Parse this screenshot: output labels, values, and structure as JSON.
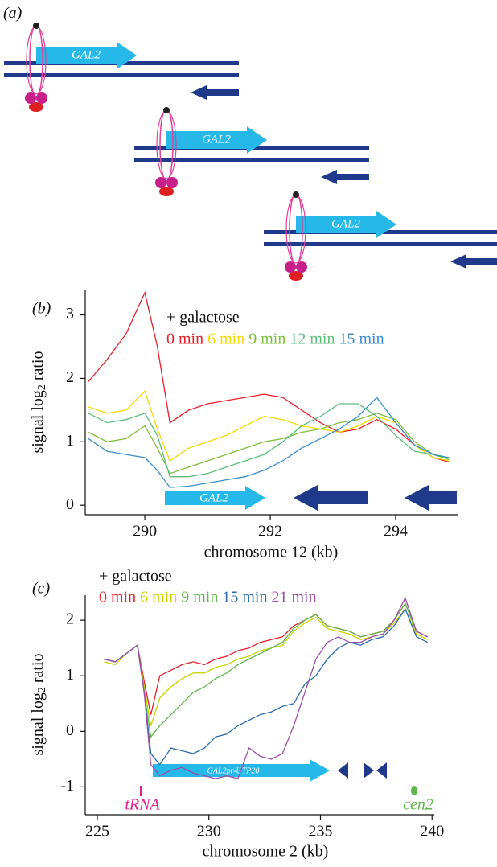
{
  "panel_a": {
    "label": "(a)",
    "genes": [
      "GAL2",
      "GAL2",
      "GAL2"
    ]
  },
  "chart_data": [
    {
      "type": "line",
      "panel": "(b)",
      "annotation": "+ galactose",
      "xlabel": "chromosome 12 (kb)",
      "ylabel": [
        "signal log",
        "2",
        "ratio"
      ],
      "features": [
        "GAL2"
      ],
      "x": [
        289.1,
        289.4,
        289.7,
        290.0,
        290.2,
        290.4,
        290.7,
        291.0,
        291.3,
        291.6,
        291.9,
        292.2,
        292.5,
        292.8,
        293.1,
        293.4,
        293.7,
        294.0,
        294.3,
        294.6,
        294.85
      ],
      "xlim": [
        289.05,
        295
      ],
      "xticks": [
        290,
        292,
        294
      ],
      "ylim": [
        -0.15,
        3.4
      ],
      "yticks": [
        0,
        1,
        2,
        3
      ],
      "series": [
        {
          "name": "0 min",
          "color": "#e8202a",
          "values": [
            1.95,
            2.3,
            2.7,
            3.35,
            2.5,
            1.3,
            1.5,
            1.6,
            1.65,
            1.7,
            1.75,
            1.7,
            1.5,
            1.3,
            1.15,
            1.2,
            1.35,
            1.2,
            0.95,
            0.75,
            0.68
          ]
        },
        {
          "name": "6 min",
          "color": "#f5d800",
          "values": [
            1.55,
            1.45,
            1.5,
            1.8,
            1.2,
            0.7,
            0.9,
            1.0,
            1.1,
            1.25,
            1.4,
            1.35,
            1.25,
            1.2,
            1.15,
            1.25,
            1.4,
            1.3,
            0.95,
            0.75,
            0.7
          ]
        },
        {
          "name": "9 min",
          "color": "#7dbf3a",
          "values": [
            1.15,
            1.0,
            1.05,
            1.25,
            0.9,
            0.5,
            0.6,
            0.7,
            0.8,
            0.9,
            1.0,
            1.05,
            1.15,
            1.2,
            1.3,
            1.35,
            1.45,
            1.35,
            1.0,
            0.8,
            0.72
          ]
        },
        {
          "name": "12 min",
          "color": "#5dbf7a",
          "values": [
            1.45,
            1.3,
            1.35,
            1.45,
            1.1,
            0.45,
            0.45,
            0.5,
            0.6,
            0.7,
            0.8,
            1.0,
            1.25,
            1.4,
            1.6,
            1.6,
            1.4,
            1.1,
            0.85,
            0.8,
            0.75
          ]
        },
        {
          "name": "15 min",
          "color": "#3a8ed0",
          "values": [
            1.05,
            0.85,
            0.8,
            0.75,
            0.55,
            0.28,
            0.3,
            0.35,
            0.4,
            0.45,
            0.55,
            0.7,
            0.9,
            1.05,
            1.2,
            1.4,
            1.7,
            1.3,
            0.95,
            0.8,
            0.75
          ]
        }
      ]
    },
    {
      "type": "line",
      "panel": "(c)",
      "annotation": "+ galactose",
      "xlabel": "chromosome 2 (kb)",
      "ylabel": [
        "signal log",
        "2",
        "ratio"
      ],
      "features": [
        "tRNA",
        "GAL2pr-UTP20",
        "cen2"
      ],
      "x": [
        225.3,
        225.8,
        226.3,
        226.8,
        227.1,
        227.4,
        227.8,
        228.3,
        228.8,
        229.3,
        229.8,
        230.3,
        230.8,
        231.3,
        231.8,
        232.3,
        232.8,
        233.3,
        233.8,
        234.3,
        234.8,
        235.3,
        235.8,
        236.3,
        236.8,
        237.3,
        237.8,
        238.3,
        238.8,
        239.3,
        239.8
      ],
      "xlim": [
        224.46,
        240.1
      ],
      "xticks": [
        225,
        230,
        235,
        240
      ],
      "ylim": [
        -1.5,
        2.45
      ],
      "yticks": [
        -1,
        0,
        1,
        2
      ],
      "series": [
        {
          "name": "0 min",
          "color": "#e8202a",
          "values": [
            1.3,
            1.25,
            1.4,
            1.55,
            0.9,
            0.3,
            1.0,
            1.1,
            1.2,
            1.25,
            1.2,
            1.3,
            1.35,
            1.45,
            1.5,
            1.6,
            1.65,
            1.7,
            1.9,
            2.0,
            2.1,
            1.9,
            1.85,
            1.8,
            1.7,
            1.75,
            1.8,
            2.0,
            2.3,
            1.8,
            1.7
          ]
        },
        {
          "name": "6 min",
          "color": "#c8d400",
          "values": [
            1.25,
            1.2,
            1.4,
            1.55,
            0.8,
            0.1,
            0.6,
            0.8,
            0.95,
            1.05,
            1.05,
            1.15,
            1.2,
            1.3,
            1.35,
            1.45,
            1.5,
            1.55,
            1.8,
            1.95,
            2.05,
            1.85,
            1.8,
            1.75,
            1.65,
            1.7,
            1.75,
            1.95,
            2.2,
            1.75,
            1.65
          ]
        },
        {
          "name": "9 min",
          "color": "#5cb84a",
          "values": [
            1.3,
            1.25,
            1.4,
            1.55,
            0.7,
            -0.1,
            0.1,
            0.3,
            0.5,
            0.7,
            0.8,
            0.95,
            1.05,
            1.2,
            1.3,
            1.4,
            1.5,
            1.6,
            1.85,
            2.0,
            2.1,
            1.9,
            1.85,
            1.8,
            1.7,
            1.75,
            1.8,
            2.0,
            2.3,
            1.8,
            1.7
          ]
        },
        {
          "name": "15 min",
          "color": "#2b6cb0",
          "values": [
            1.3,
            1.25,
            1.4,
            1.55,
            0.7,
            -0.4,
            -0.6,
            -0.3,
            -0.35,
            -0.4,
            -0.3,
            -0.1,
            -0.05,
            0.1,
            0.2,
            0.3,
            0.35,
            0.45,
            0.5,
            0.85,
            1.0,
            1.3,
            1.5,
            1.6,
            1.55,
            1.65,
            1.7,
            1.9,
            2.2,
            1.7,
            1.6
          ]
        },
        {
          "name": "21 min",
          "color": "#9b4fa8",
          "values": [
            1.3,
            1.25,
            1.4,
            1.55,
            0.7,
            -0.6,
            -0.8,
            -0.7,
            -0.65,
            -0.75,
            -0.8,
            -0.85,
            -0.8,
            -0.85,
            -0.3,
            -0.45,
            -0.5,
            -0.4,
            0.1,
            0.7,
            1.3,
            1.6,
            1.7,
            1.6,
            1.6,
            1.7,
            1.75,
            2.0,
            2.4,
            1.8,
            1.7
          ]
        }
      ]
    }
  ]
}
